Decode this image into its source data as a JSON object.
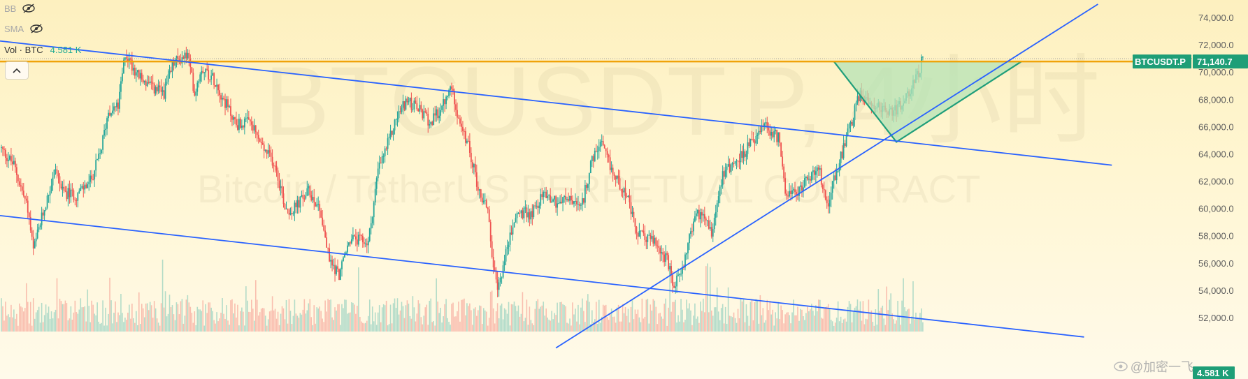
{
  "indicators": [
    {
      "name": "BB"
    },
    {
      "name": "SMA"
    },
    {
      "name": "Vol · BTC",
      "value": "4.581 K"
    }
  ],
  "watermark": {
    "symbol": "BTCUSDT.P, 4小时",
    "description": "Bitcoin / TetherUS PERPETUAL CONTRACT"
  },
  "source_watermark": "@加密一飞",
  "colors": {
    "up": "#26a69a",
    "down": "#ef5350",
    "trendline": "#2962ff",
    "resistance": "#f0a30a",
    "pattern_fill": "#b6e3b6",
    "pattern_edge": "#1f9e7a",
    "tag_bg": "#1e9e77"
  },
  "chart_data": {
    "type": "candlestick",
    "symbol": "BTCUSDT.P",
    "timeframe": "4小时",
    "y_axis_ticks": [
      "74,000.0",
      "72,000.0",
      "70,000.0",
      "68,000.0",
      "66,000.0",
      "64,000.0",
      "62,000.0",
      "60,000.0",
      "58,000.0",
      "56,000.0",
      "54,000.0",
      "52,000.0"
    ],
    "ylim": [
      51000,
      75000
    ],
    "last_price_label": "BTCUSDT.P",
    "last_price": "71,140.7",
    "volume_label": "4.581 K",
    "resistance_level": 70800,
    "close_path": [
      [
        0,
        64500
      ],
      [
        10,
        63200
      ],
      [
        20,
        60000
      ],
      [
        24,
        56900
      ],
      [
        30,
        59300
      ],
      [
        40,
        63000
      ],
      [
        45,
        61200
      ],
      [
        55,
        61000
      ],
      [
        65,
        62000
      ],
      [
        72,
        64000
      ],
      [
        78,
        67200
      ],
      [
        85,
        67500
      ],
      [
        90,
        71400
      ],
      [
        100,
        69700
      ],
      [
        110,
        68800
      ],
      [
        118,
        68500
      ],
      [
        125,
        70700
      ],
      [
        135,
        71300
      ],
      [
        140,
        68500
      ],
      [
        145,
        70400
      ],
      [
        155,
        69400
      ],
      [
        160,
        68200
      ],
      [
        170,
        66200
      ],
      [
        180,
        66300
      ],
      [
        190,
        64300
      ],
      [
        198,
        63300
      ],
      [
        205,
        60200
      ],
      [
        210,
        59800
      ],
      [
        222,
        61300
      ],
      [
        230,
        60100
      ],
      [
        237,
        56200
      ],
      [
        244,
        55200
      ],
      [
        252,
        57800
      ],
      [
        265,
        57500
      ],
      [
        272,
        62800
      ],
      [
        280,
        65000
      ],
      [
        285,
        66600
      ],
      [
        292,
        67900
      ],
      [
        300,
        67400
      ],
      [
        310,
        66300
      ],
      [
        318,
        67400
      ],
      [
        325,
        68900
      ],
      [
        332,
        65800
      ],
      [
        338,
        64300
      ],
      [
        345,
        61100
      ],
      [
        351,
        60100
      ],
      [
        355,
        55500
      ],
      [
        358,
        54000
      ],
      [
        365,
        57200
      ],
      [
        372,
        59700
      ],
      [
        382,
        59600
      ],
      [
        392,
        61200
      ],
      [
        400,
        60500
      ],
      [
        410,
        60700
      ],
      [
        418,
        59900
      ],
      [
        425,
        63200
      ],
      [
        432,
        64800
      ],
      [
        442,
        62400
      ],
      [
        450,
        61300
      ],
      [
        458,
        58200
      ],
      [
        470,
        57700
      ],
      [
        480,
        56200
      ],
      [
        485,
        54100
      ],
      [
        492,
        56100
      ],
      [
        500,
        59500
      ],
      [
        507,
        59700
      ],
      [
        512,
        58300
      ],
      [
        520,
        62700
      ],
      [
        530,
        63500
      ],
      [
        540,
        64700
      ],
      [
        550,
        66000
      ],
      [
        560,
        65200
      ],
      [
        565,
        61500
      ],
      [
        572,
        60900
      ],
      [
        580,
        62200
      ],
      [
        590,
        62700
      ],
      [
        595,
        60200
      ],
      [
        600,
        62200
      ],
      [
        608,
        64800
      ],
      [
        612,
        66100
      ],
      [
        618,
        68300
      ],
      [
        625,
        68000
      ],
      [
        635,
        67300
      ],
      [
        643,
        67200
      ],
      [
        650,
        67700
      ],
      [
        655,
        68800
      ],
      [
        662,
        70300
      ],
      [
        664,
        71140
      ]
    ],
    "volume_baseline_note": "volume histogram along bottom of price pane",
    "drawings": {
      "upper_channel_line": [
        [
          0,
          72300
        ],
        [
          800,
          63200
        ]
      ],
      "lower_channel_line": [
        [
          0,
          59500
        ],
        [
          780,
          50600
        ]
      ],
      "rising_trendline": [
        [
          400,
          49800
        ],
        [
          790,
          75000
        ]
      ],
      "resistance_line": [
        [
          0,
          70800
        ],
        [
          820,
          70800
        ]
      ],
      "triangle_pattern": [
        [
          600,
          70800
        ],
        [
          645,
          64900
        ],
        [
          735,
          70800
        ]
      ]
    },
    "x_domain": [
      0,
      820
    ],
    "grid": false,
    "legend": "top-left"
  }
}
